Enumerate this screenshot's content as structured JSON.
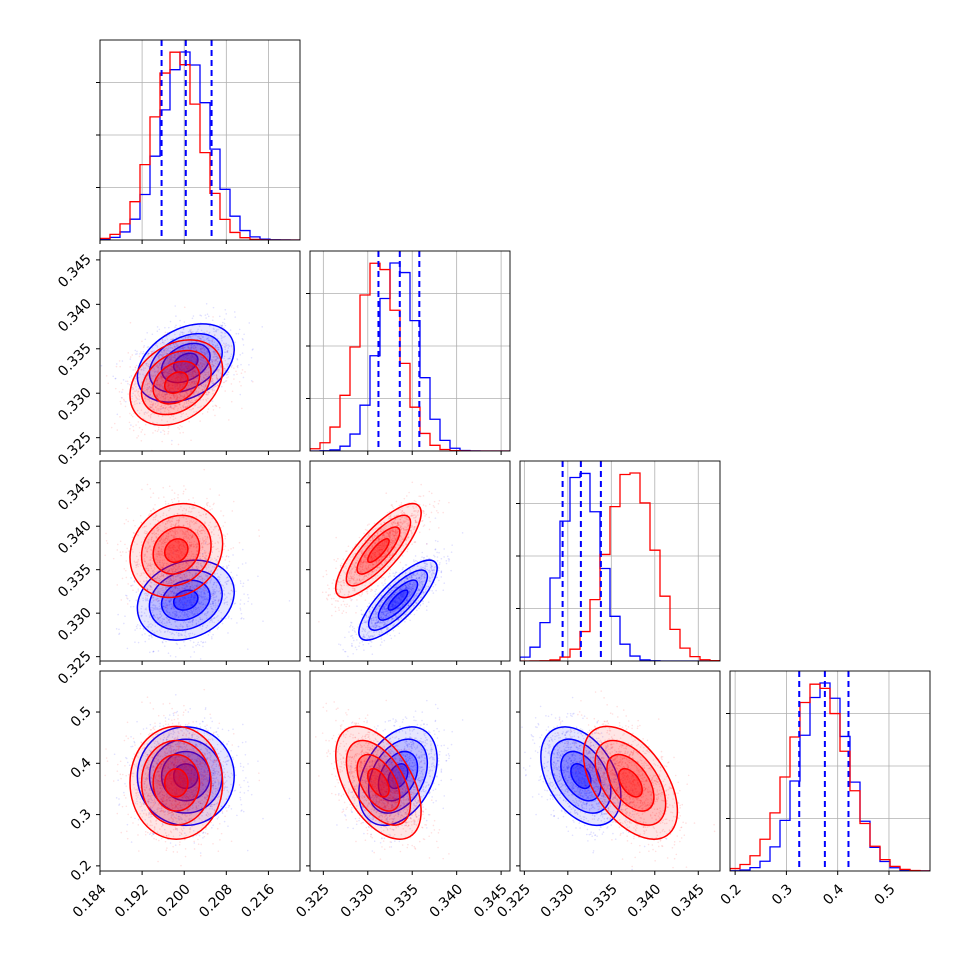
{
  "chart_data": {
    "type": "corner",
    "title": "",
    "colors": {
      "series_a": "#0000ff",
      "series_b": "#ff0000"
    },
    "series": [
      {
        "color": "#0000ff",
        "mean": [
          0.2003,
          0.3334,
          0.3315,
          0.375
        ],
        "sd": [
          0.0046,
          0.0022,
          0.0023,
          0.048
        ],
        "corr": [
          [
            1,
            0.35,
            0.2,
            0.0
          ],
          [
            0.35,
            1,
            0.8,
            0.35
          ],
          [
            0.2,
            0.8,
            1,
            -0.4
          ],
          [
            0.0,
            0.35,
            -0.4,
            1
          ]
        ]
      },
      {
        "color": "#ff0000",
        "mean": [
          0.1985,
          0.3312,
          0.3372,
          0.362
        ],
        "sd": [
          0.0044,
          0.0024,
          0.0027,
          0.055
        ],
        "corr": [
          [
            1,
            0.3,
            0.15,
            0.0
          ],
          [
            0.3,
            1,
            0.8,
            -0.5
          ],
          [
            0.15,
            0.8,
            1,
            -0.5
          ],
          [
            0.0,
            -0.5,
            -0.5,
            1
          ]
        ]
      }
    ],
    "parameters": [
      {
        "range": [
          0.184,
          0.222
        ],
        "ticks": [
          0.184,
          0.192,
          0.2,
          0.208,
          0.216
        ],
        "tick_labels": [
          "0.184",
          "0.192",
          "0.200",
          "0.208",
          "0.216"
        ]
      },
      {
        "range": [
          0.3235,
          0.346
        ],
        "ticks": [
          0.325,
          0.33,
          0.335,
          0.34,
          0.345
        ],
        "tick_labels": [
          "0.325",
          "0.330",
          "0.335",
          "0.340",
          "0.345"
        ]
      },
      {
        "range": [
          0.3245,
          0.3475
        ],
        "ticks": [
          0.325,
          0.33,
          0.335,
          0.34,
          0.345
        ],
        "tick_labels": [
          "0.325",
          "0.330",
          "0.335",
          "0.340",
          "0.345"
        ]
      },
      {
        "range": [
          0.19,
          0.58
        ],
        "ticks": [
          0.2,
          0.3,
          0.4,
          0.5
        ],
        "tick_labels": [
          "0.2",
          "0.3",
          "0.4",
          "0.5"
        ]
      }
    ],
    "quantile_lines": [
      [
        0.1957,
        0.2003,
        0.2052
      ],
      [
        0.3312,
        0.3336,
        0.3358
      ],
      [
        0.3294,
        0.3315,
        0.3338
      ],
      [
        0.325,
        0.375,
        0.421
      ]
    ],
    "quantile_color": "#0000ff",
    "contour_levels_sigma": [
      0.5,
      1.0,
      1.5,
      2.0
    ],
    "grid": true
  }
}
